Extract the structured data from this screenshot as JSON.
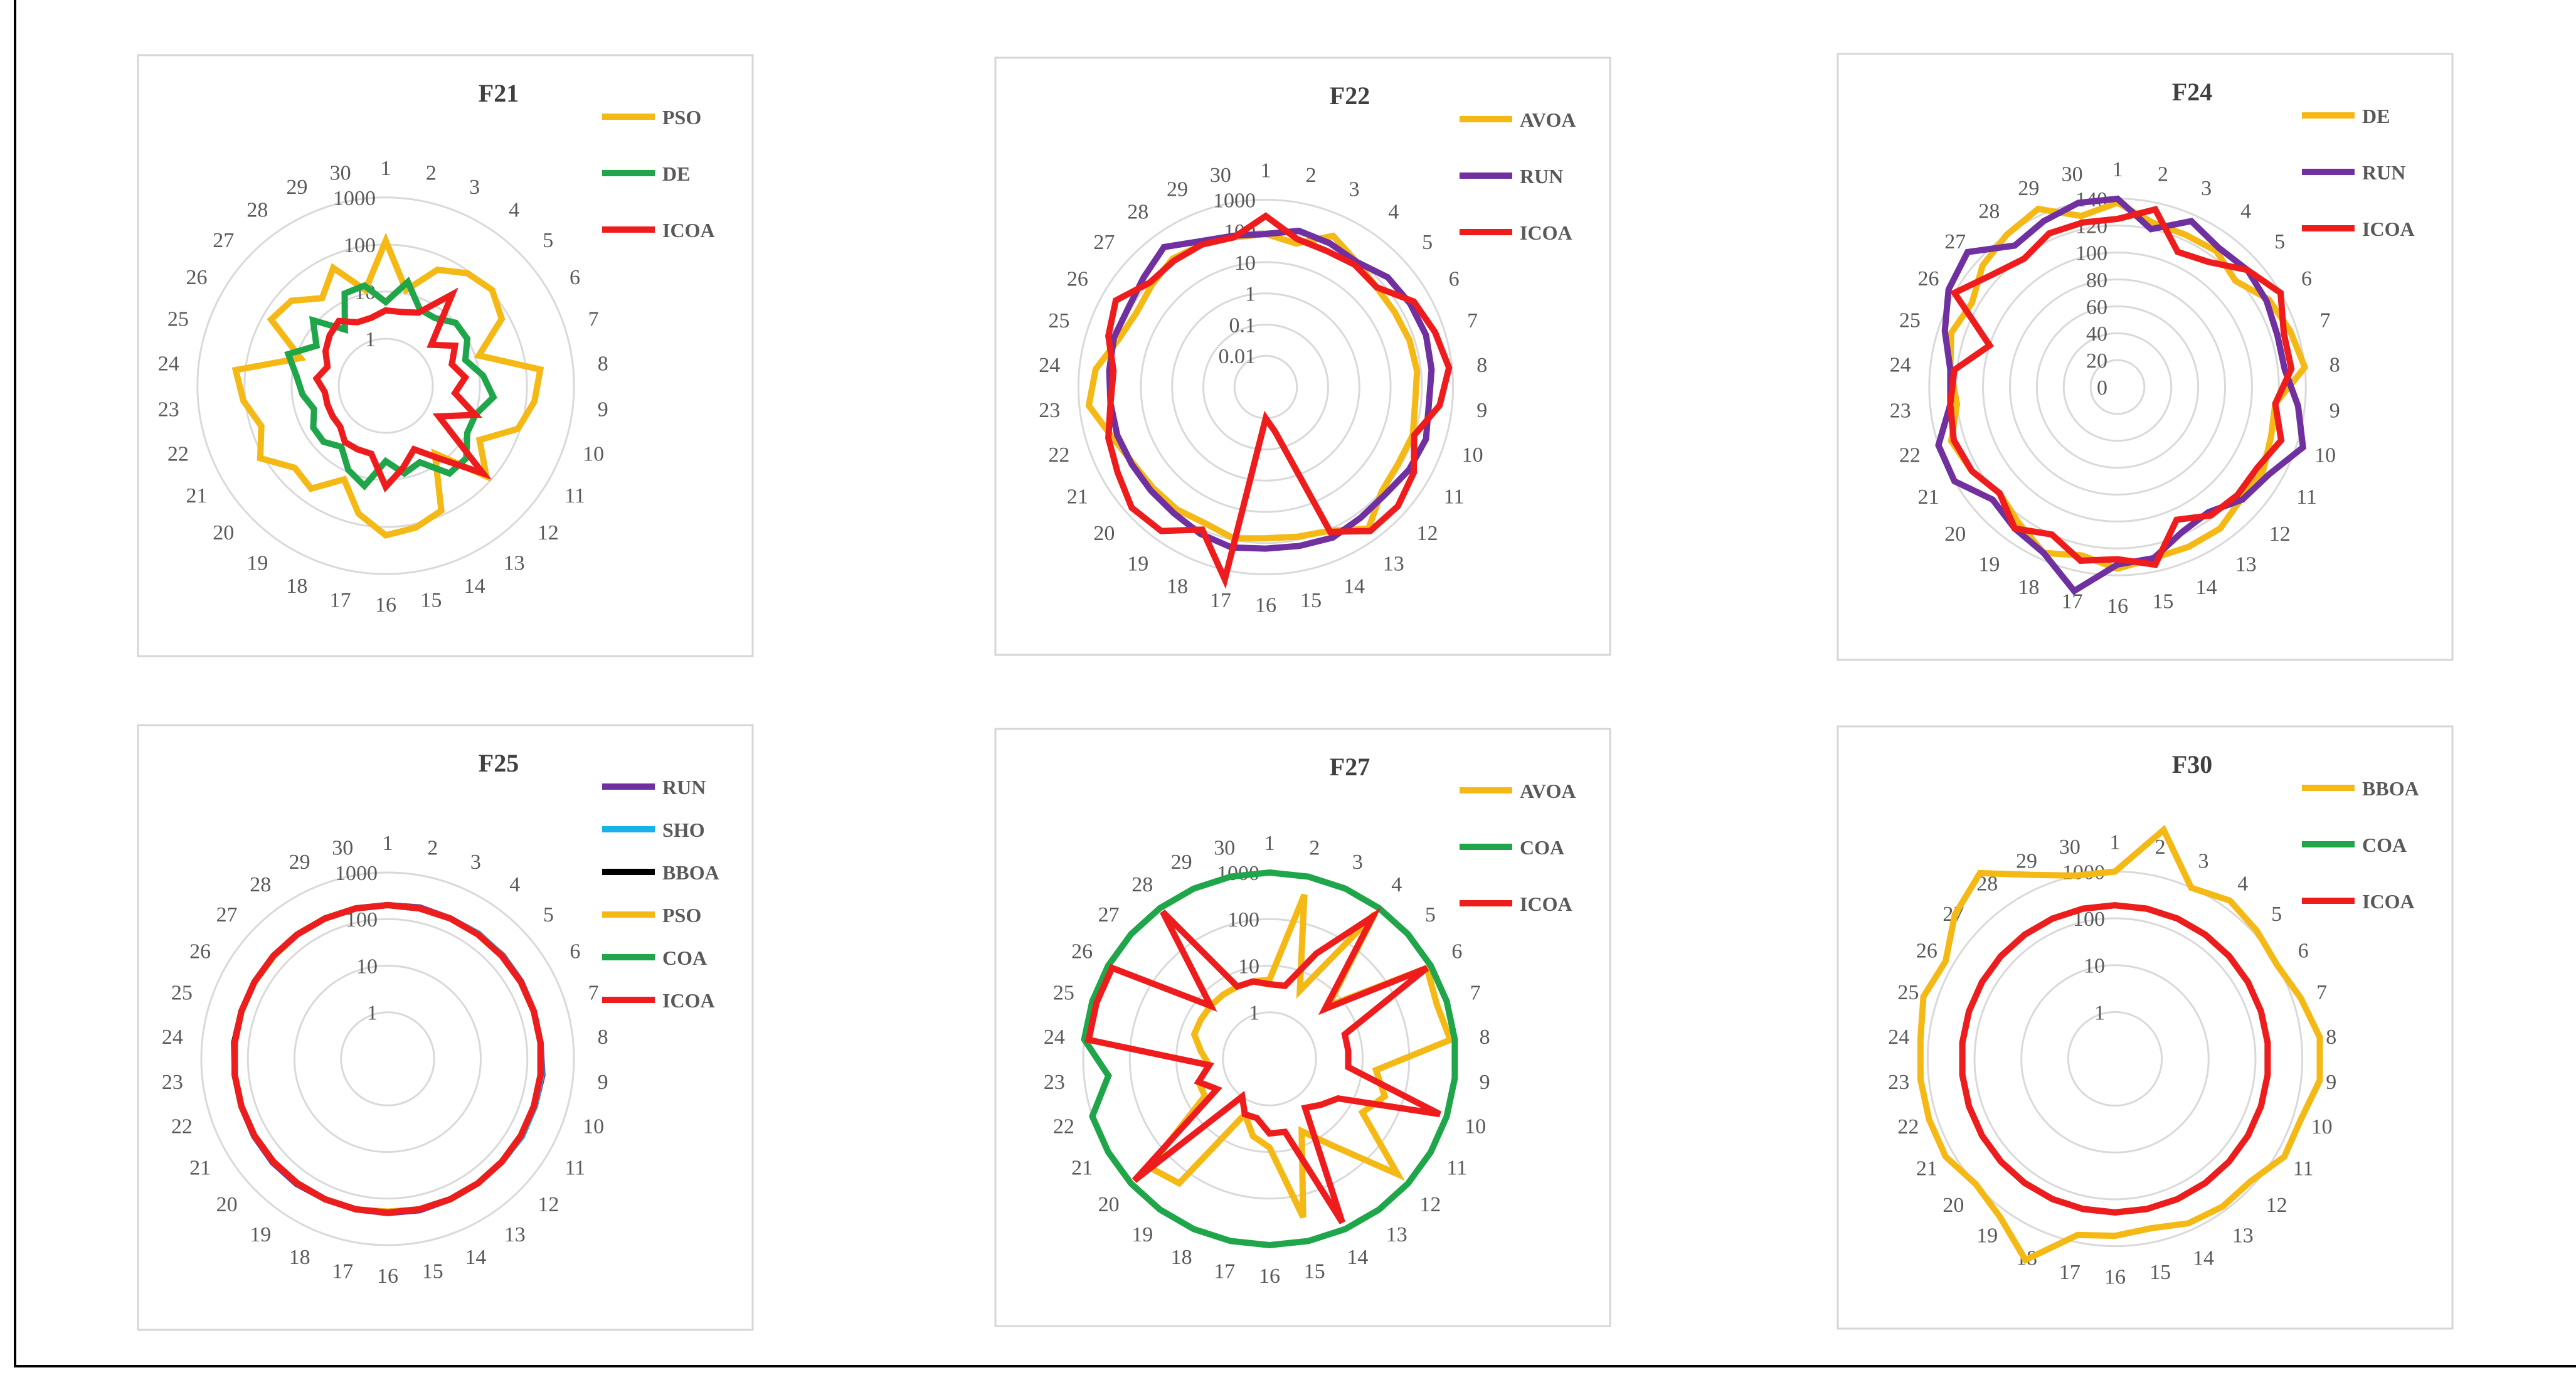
{
  "palette": {
    "yellow": "#F5B915",
    "green": "#1FA64A",
    "red": "#EE1C1C",
    "purple": "#7030A0",
    "blue": "#1AB0E8",
    "black": "#000000",
    "grid": "#d9d9d9"
  },
  "chart_data": [
    {
      "type": "radar",
      "title": "F21",
      "scale": "log",
      "categories": [
        "1",
        "2",
        "3",
        "4",
        "5",
        "6",
        "7",
        "8",
        "9",
        "10",
        "11",
        "12",
        "13",
        "14",
        "15",
        "16",
        "17",
        "18",
        "19",
        "20",
        "21",
        "22",
        "23",
        "24",
        "25",
        "26",
        "27",
        "28",
        "29",
        "30"
      ],
      "rings": [
        1,
        10,
        100,
        1000
      ],
      "ring_labels": [
        "1",
        "10",
        "100",
        "1000"
      ],
      "legend_position": "top-right",
      "series": [
        {
          "name": "PSO",
          "color": "yellow",
          "values": [
            120,
            12,
            50,
            90,
            110,
            70,
            12,
            200,
            150,
            90,
            20,
            75,
            6,
            80,
            120,
            150,
            60,
            15,
            50,
            40,
            120,
            60,
            110,
            160,
            8,
            65,
            50,
            20,
            55,
            12
          ]
        },
        {
          "name": "DE",
          "color": "green",
          "values": [
            6,
            18,
            6,
            6,
            10,
            10,
            6,
            12,
            20,
            10,
            10,
            20,
            20,
            6,
            8,
            4,
            15,
            9,
            4,
            6,
            6,
            4,
            6,
            8,
            15,
            5,
            12,
            3,
            14,
            15
          ]
        },
        {
          "name": "ICOA",
          "color": "red",
          "values": [
            4,
            4,
            5,
            25,
            2,
            5,
            3,
            5,
            3,
            10,
            2,
            60,
            8,
            3,
            6,
            14,
            3,
            3,
            3,
            2,
            2,
            2,
            2,
            3,
            2,
            3,
            4,
            5,
            3,
            3
          ]
        }
      ]
    },
    {
      "type": "radar",
      "title": "F22",
      "scale": "log",
      "categories": [
        "1",
        "2",
        "3",
        "4",
        "5",
        "6",
        "7",
        "8",
        "9",
        "10",
        "11",
        "12",
        "13",
        "14",
        "15",
        "16",
        "17",
        "18",
        "19",
        "20",
        "21",
        "22",
        "23",
        "24",
        "25",
        "26",
        "27",
        "28",
        "29",
        "30"
      ],
      "rings": [
        0.01,
        0.1,
        1,
        10,
        100,
        1000
      ],
      "ring_labels": [
        "0.01",
        "0.1",
        "1",
        "10",
        "100",
        "1000"
      ],
      "legend_position": "top-right",
      "series": [
        {
          "name": "AVOA",
          "color": "yellow",
          "values": [
            80,
            50,
            200,
            90,
            60,
            60,
            70,
            75,
            65,
            90,
            80,
            100,
            400,
            110,
            80,
            70,
            90,
            60,
            70,
            70,
            80,
            150,
            500,
            300,
            90,
            60,
            80,
            120,
            100,
            80
          ]
        },
        {
          "name": "RUN",
          "color": "purple",
          "values": [
            80,
            130,
            110,
            90,
            180,
            220,
            250,
            220,
            180,
            250,
            200,
            140,
            150,
            190,
            160,
            150,
            180,
            140,
            100,
            90,
            90,
            100,
            100,
            110,
            130,
            120,
            180,
            350,
            130,
            90
          ]
        },
        {
          "name": "ICOA",
          "color": "red",
          "values": [
            300,
            70,
            60,
            70,
            60,
            300,
            500,
            800,
            400,
            100,
            300,
            500,
            500,
            120,
            0.03,
            0.01,
            2000,
            100,
            500,
            600,
            300,
            200,
            100,
            80,
            200,
            350,
            100,
            100,
            100,
            80
          ]
        }
      ]
    },
    {
      "type": "radar",
      "title": "F24",
      "scale": "linear",
      "categories": [
        "1",
        "2",
        "3",
        "4",
        "5",
        "6",
        "7",
        "8",
        "9",
        "10",
        "11",
        "12",
        "13",
        "14",
        "15",
        "16",
        "17",
        "18",
        "19",
        "20",
        "21",
        "22",
        "23",
        "24",
        "25",
        "26",
        "27",
        "28",
        "29",
        "30"
      ],
      "rings": [
        0,
        20,
        40,
        60,
        80,
        100,
        120,
        140
      ],
      "ring_labels": [
        "0",
        "20",
        "40",
        "60",
        "80",
        "100",
        "120",
        "140"
      ],
      "legend_position": "top-right",
      "series": [
        {
          "name": "DE",
          "color": "yellow",
          "values": [
            137,
            125,
            124,
            125,
            118,
            130,
            135,
            140,
            118,
            120,
            125,
            124,
            130,
            130,
            130,
            135,
            128,
            135,
            125,
            118,
            125,
            130,
            120,
            125,
            130,
            125,
            135,
            140,
            145,
            130
          ]
        },
        {
          "name": "RUN",
          "color": "purple",
          "values": [
            140,
            120,
            135,
            128,
            130,
            128,
            125,
            125,
            135,
            145,
            130,
            125,
            115,
            118,
            130,
            132,
            155,
            135,
            130,
            125,
            140,
            140,
            125,
            125,
            135,
            145,
            150,
            130,
            135,
            140
          ]
        },
        {
          "name": "ICOA",
          "color": "red",
          "values": [
            125,
            135,
            110,
            115,
            130,
            140,
            130,
            130,
            118,
            128,
            120,
            120,
            118,
            108,
            135,
            128,
            132,
            120,
            130,
            118,
            125,
            128,
            125,
            122,
            100,
            140,
            125,
            118,
            125,
            125
          ]
        }
      ]
    },
    {
      "type": "radar",
      "title": "F25",
      "scale": "log",
      "categories": [
        "1",
        "2",
        "3",
        "4",
        "5",
        "6",
        "7",
        "8",
        "9",
        "10",
        "11",
        "12",
        "13",
        "14",
        "15",
        "16",
        "17",
        "18",
        "19",
        "20",
        "21",
        "22",
        "23",
        "24",
        "25",
        "26",
        "27",
        "28",
        "29",
        "30"
      ],
      "rings": [
        1,
        10,
        100,
        1000
      ],
      "ring_labels": [
        "1",
        "10",
        "100",
        "1000"
      ],
      "legend_position": "top-right",
      "series": [
        {
          "name": "RUN",
          "color": "purple",
          "values": [
            200,
            210,
            200,
            200,
            210,
            205,
            200,
            200,
            220,
            210,
            200,
            200,
            200,
            200,
            210,
            205,
            200,
            200,
            210,
            210,
            205,
            200,
            200,
            200,
            200,
            200,
            200,
            200,
            200,
            200
          ]
        },
        {
          "name": "SHO",
          "color": "blue",
          "values": [
            200,
            200,
            200,
            210,
            205,
            200,
            200,
            200,
            210,
            210,
            215,
            200,
            200,
            200,
            200,
            200,
            200,
            200,
            200,
            200,
            200,
            200,
            200,
            200,
            200,
            200,
            200,
            200,
            200,
            200
          ]
        },
        {
          "name": "BBOA",
          "color": "black",
          "values": [
            200,
            200,
            200,
            200,
            200,
            200,
            200,
            200,
            200,
            200,
            200,
            200,
            200,
            200,
            200,
            200,
            200,
            200,
            200,
            200,
            200,
            200,
            200,
            205,
            200,
            200,
            200,
            200,
            200,
            200
          ]
        },
        {
          "name": "PSO",
          "color": "yellow",
          "values": [
            200,
            200,
            200,
            200,
            200,
            200,
            200,
            200,
            200,
            200,
            200,
            200,
            200,
            200,
            200,
            190,
            200,
            200,
            200,
            200,
            200,
            200,
            200,
            200,
            200,
            200,
            195,
            200,
            200,
            200
          ]
        },
        {
          "name": "COA",
          "color": "green",
          "values": [
            200,
            200,
            200,
            200,
            200,
            200,
            200,
            200,
            200,
            200,
            200,
            200,
            200,
            200,
            200,
            200,
            200,
            200,
            200,
            200,
            200,
            200,
            200,
            200,
            200,
            200,
            200,
            200,
            200,
            200
          ]
        },
        {
          "name": "ICOA",
          "color": "red",
          "values": [
            200,
            200,
            200,
            200,
            200,
            200,
            200,
            200,
            200,
            200,
            200,
            200,
            200,
            200,
            200,
            200,
            200,
            200,
            200,
            200,
            200,
            200,
            200,
            200,
            200,
            200,
            200,
            200,
            200,
            200
          ]
        }
      ]
    },
    {
      "type": "radar",
      "title": "F27",
      "scale": "log",
      "categories": [
        "1",
        "2",
        "3",
        "4",
        "5",
        "6",
        "7",
        "8",
        "9",
        "10",
        "11",
        "12",
        "13",
        "14",
        "15",
        "16",
        "17",
        "18",
        "19",
        "20",
        "21",
        "22",
        "23",
        "24",
        "25",
        "26",
        "27",
        "28",
        "29",
        "30"
      ],
      "rings": [
        1,
        10,
        100,
        1000
      ],
      "ring_labels": [
        "1",
        "10",
        "100",
        "1000"
      ],
      "legend_position": "top-right",
      "series": [
        {
          "name": "AVOA",
          "color": "yellow",
          "values": [
            5,
            400,
            4,
            700,
            5,
            800,
            600,
            800,
            20,
            40,
            20,
            500,
            20,
            5,
            300,
            8,
            5,
            2,
            200,
            300,
            4,
            4,
            2,
            3,
            5,
            5,
            5,
            5,
            5,
            5
          ]
        },
        {
          "name": "COA",
          "color": "green",
          "values": [
            1000,
            1000,
            1000,
            1000,
            1000,
            1000,
            1000,
            1000,
            1000,
            1000,
            1000,
            1000,
            1000,
            1000,
            1000,
            1000,
            1000,
            1000,
            1000,
            1000,
            1000,
            1000,
            300,
            1000,
            1000,
            1000,
            1000,
            1000,
            1000,
            1000
          ]
        },
        {
          "name": "ICOA",
          "color": "red",
          "values": [
            4,
            4,
            30,
            600,
            4,
            800,
            5,
            5,
            5,
            700,
            5,
            3,
            2,
            700,
            4,
            4,
            2,
            2,
            1,
            800,
            2,
            4,
            2,
            800,
            800,
            800,
            5,
            800,
            5,
            5
          ]
        }
      ]
    },
    {
      "type": "radar",
      "title": "F30",
      "scale": "log",
      "categories": [
        "1",
        "2",
        "3",
        "4",
        "5",
        "6",
        "7",
        "8",
        "9",
        "10",
        "11",
        "12",
        "13",
        "14",
        "15",
        "16",
        "17",
        "18",
        "19",
        "20",
        "21",
        "22",
        "23",
        "24",
        "25",
        "26",
        "27",
        "28",
        "29",
        "30"
      ],
      "rings": [
        1,
        10,
        100,
        1000
      ],
      "ring_labels": [
        "1",
        "10",
        "100",
        "1000"
      ],
      "legend_position": "top-right",
      "series": [
        {
          "name": "BBOA",
          "color": "yellow",
          "values": [
            1000,
            10000,
            1000,
            1500,
            1200,
            1000,
            1500,
            2500,
            2500,
            1500,
            1500,
            800,
            800,
            700,
            500,
            600,
            700,
            5000,
            1500,
            1000,
            1500,
            1500,
            1500,
            1500,
            2000,
            1500,
            4000,
            8000,
            2000,
            1000
          ]
        },
        {
          "name": "COA",
          "color": "green",
          "values": [
            190,
            190,
            190,
            190,
            190,
            190,
            190,
            190,
            190,
            190,
            190,
            190,
            190,
            190,
            190,
            190,
            190,
            190,
            190,
            190,
            190,
            190,
            190,
            190,
            190,
            190,
            190,
            190,
            190,
            190
          ]
        },
        {
          "name": "ICOA",
          "color": "red",
          "values": [
            190,
            190,
            190,
            190,
            190,
            190,
            190,
            190,
            190,
            190,
            190,
            190,
            190,
            190,
            190,
            190,
            190,
            190,
            190,
            190,
            190,
            190,
            190,
            190,
            190,
            190,
            190,
            190,
            190,
            190
          ]
        }
      ]
    }
  ]
}
